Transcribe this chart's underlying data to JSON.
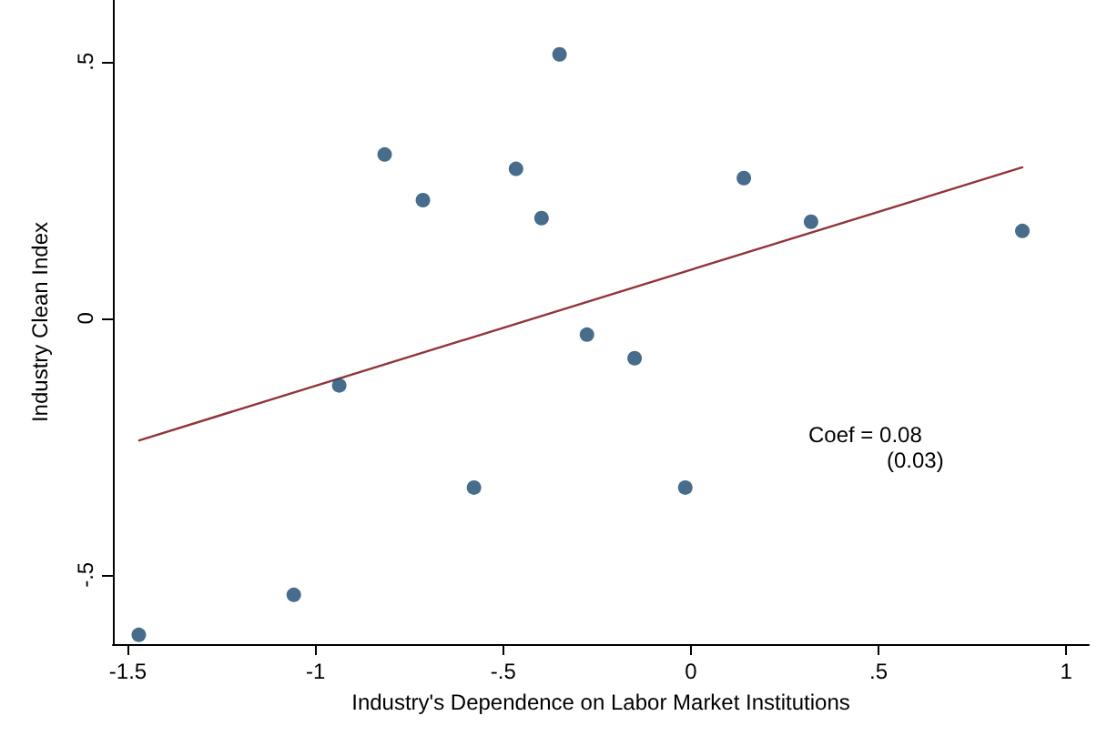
{
  "chart_data": {
    "type": "scatter",
    "xlabel": "Industry's Dependence on Labor Market Institutions",
    "ylabel": "Industry Clean Index",
    "xlim": [
      -1.54,
      1.06
    ],
    "ylim": [
      -0.635,
      0.62
    ],
    "xticks": [
      {
        "value": -1.5,
        "label": "-1.5"
      },
      {
        "value": -1,
        "label": "-1"
      },
      {
        "value": -0.5,
        "label": "-.5"
      },
      {
        "value": 0,
        "label": "0"
      },
      {
        "value": 0.5,
        "label": ".5"
      },
      {
        "value": 1,
        "label": "1"
      }
    ],
    "yticks": [
      {
        "value": -0.5,
        "label": "-.5"
      },
      {
        "value": 0,
        "label": "0"
      },
      {
        "value": 0.5,
        "label": ".5"
      }
    ],
    "series": [
      {
        "color": "#1a476f",
        "marker": "circle",
        "x": [
          -1.471,
          -1.058,
          -0.937,
          -0.816,
          -0.714,
          -0.578,
          -0.466,
          -0.398,
          -0.35,
          -0.277,
          -0.15,
          -0.015,
          0.141,
          0.32,
          0.883
        ],
        "values": [
          -0.617,
          -0.539,
          -0.131,
          0.319,
          0.23,
          -0.33,
          0.291,
          0.195,
          0.514,
          -0.032,
          -0.078,
          -0.33,
          0.273,
          0.188,
          0.17
        ]
      },
      {
        "type": "line",
        "color": "#90353b",
        "marker": "none",
        "line_style": "solid",
        "x": [
          -1.47,
          0.883
        ],
        "values": [
          -0.238,
          0.294
        ]
      }
    ],
    "annotations": [
      "Coef = 0.08",
      "(0.03)"
    ]
  }
}
